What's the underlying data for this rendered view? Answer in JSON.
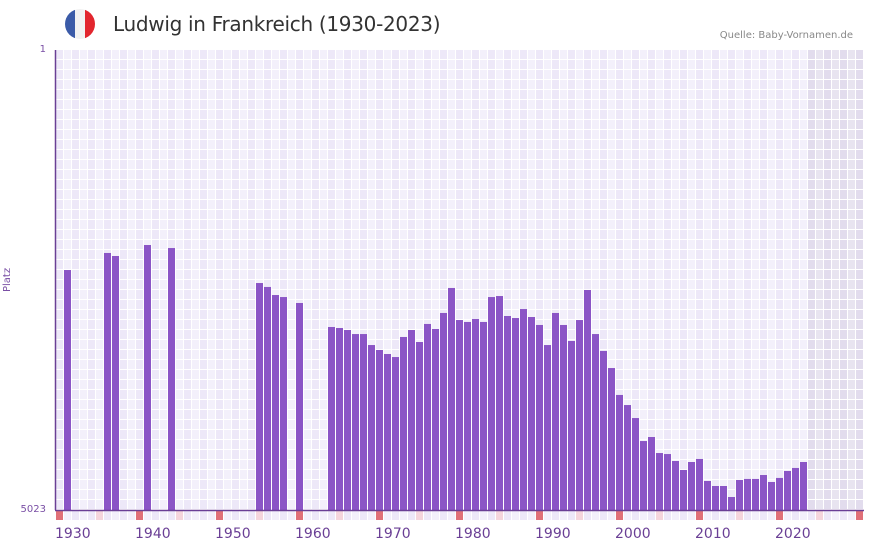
{
  "header": {
    "title": "Ludwig in Frankreich (1930-2023)",
    "source": "Quelle: Baby-Vornamen.de",
    "flag_icon": "france-flag-icon",
    "flag_colors": [
      "#3b5ba8",
      "#f2f2f2",
      "#e2262e"
    ]
  },
  "axes": {
    "y_top_label": "1",
    "y_bottom_label": "5023",
    "y_title": "Platz",
    "x_labels": [
      "1930",
      "1940",
      "1950",
      "1960",
      "1970",
      "1980",
      "1990",
      "2000",
      "2010",
      "2020"
    ]
  },
  "colors": {
    "bar": "#8b55c6",
    "axis": "#6a3f95",
    "grid_a": "#ede8f8",
    "grid_b": "#f3f0fb",
    "future_a": "#e2dced",
    "future_b": "#e8e4f0",
    "decade_marker": "#e07078",
    "half_decade_marker": "#f5d5dc"
  },
  "chart_data": {
    "type": "bar",
    "title": "Ludwig in Frankreich (1930-2023)",
    "xlabel": "",
    "ylabel": "Platz",
    "ylim": [
      5023,
      1
    ],
    "y_inverted": true,
    "x_range": [
      1930,
      2030
    ],
    "grid": true,
    "source": "Quelle: Baby-Vornamen.de",
    "x": [
      1931,
      1936,
      1937,
      1941,
      1944,
      1955,
      1956,
      1957,
      1958,
      1960,
      1964,
      1965,
      1966,
      1967,
      1968,
      1969,
      1970,
      1971,
      1972,
      1973,
      1974,
      1975,
      1976,
      1977,
      1978,
      1979,
      1980,
      1981,
      1982,
      1983,
      1984,
      1985,
      1986,
      1987,
      1988,
      1989,
      1990,
      1991,
      1992,
      1993,
      1994,
      1995,
      1996,
      1997,
      1998,
      1999,
      2000,
      2001,
      2002,
      2003,
      2004,
      2005,
      2006,
      2007,
      2008,
      2009,
      2010,
      2011,
      2012,
      2013,
      2014,
      2015,
      2016,
      2017,
      2018,
      2019,
      2020,
      2021,
      2022,
      2023
    ],
    "values": [
      2403,
      2217,
      2250,
      2130,
      2163,
      2545,
      2588,
      2676,
      2698,
      2763,
      3025,
      3036,
      3058,
      3102,
      3102,
      3222,
      3276,
      3320,
      3353,
      3134,
      3058,
      3189,
      2992,
      3047,
      2872,
      2599,
      2949,
      2970,
      2938,
      2970,
      2698,
      2687,
      2905,
      2927,
      2829,
      2916,
      3003,
      3222,
      2872,
      3003,
      3178,
      2949,
      2621,
      3102,
      3287,
      3473,
      3767,
      3877,
      4019,
      4270,
      4226,
      4401,
      4412,
      4488,
      4586,
      4499,
      4466,
      4706,
      4761,
      4761,
      4881,
      4695,
      4684,
      4684,
      4641,
      4717,
      4673,
      4597,
      4564,
      4499
    ]
  }
}
